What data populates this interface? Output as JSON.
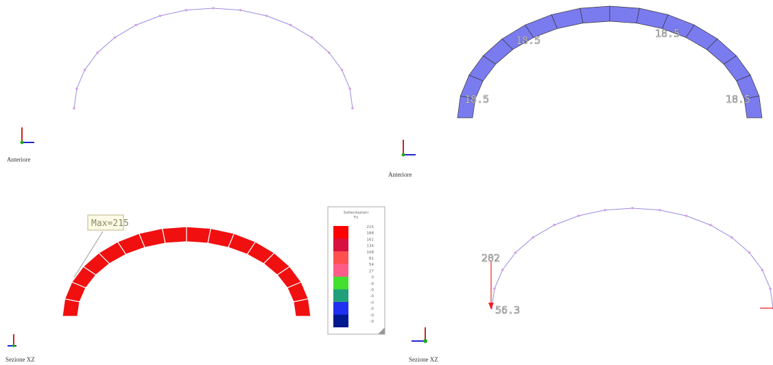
{
  "views": [
    {
      "caption": "Anteriore"
    },
    {
      "caption": "Anteriore",
      "labels": [
        "18.5",
        "18.5",
        "18.5",
        "18.5"
      ]
    },
    {
      "caption": "Sezione XZ",
      "annotation": "Max=215",
      "legend": {
        "title": "Sollecitazioni",
        "subtitle": "Fz",
        "labels": [
          "215",
          "188",
          "161",
          "134",
          "108",
          "81",
          "54",
          "27",
          "0",
          "-0",
          "-0",
          "-0",
          "-0",
          "-0",
          "-0",
          "-0"
        ]
      }
    },
    {
      "caption": "Sezione XZ",
      "labels": [
        "202",
        "56.3"
      ]
    }
  ]
}
